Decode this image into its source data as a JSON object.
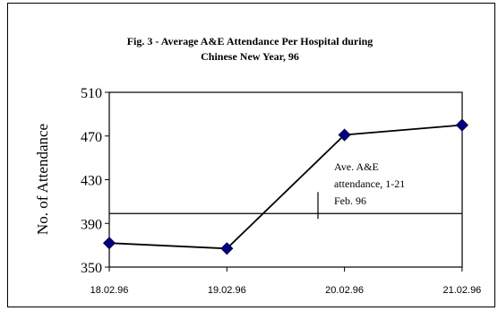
{
  "chart_data": {
    "type": "line",
    "title_lines": [
      "Fig. 3 - Average A&E Attendance Per Hospital during",
      "Chinese New Year, 96"
    ],
    "xlabel": "",
    "ylabel": "No. of Attendance",
    "categories": [
      "18.02.96",
      "19.02.96",
      "20.02.96",
      "21.02.96"
    ],
    "series": [
      {
        "values": [
          372,
          367,
          471,
          480
        ],
        "color": "#000080",
        "marker": "diamond"
      }
    ],
    "reference_line": {
      "value": 399,
      "annotation": [
        "Ave. A&E",
        "attendance, 1-21",
        "Feb. 96"
      ]
    },
    "yticks": [
      350,
      390,
      430,
      470,
      510
    ],
    "ylim": [
      350,
      510
    ],
    "grid": false,
    "legend": "none"
  }
}
